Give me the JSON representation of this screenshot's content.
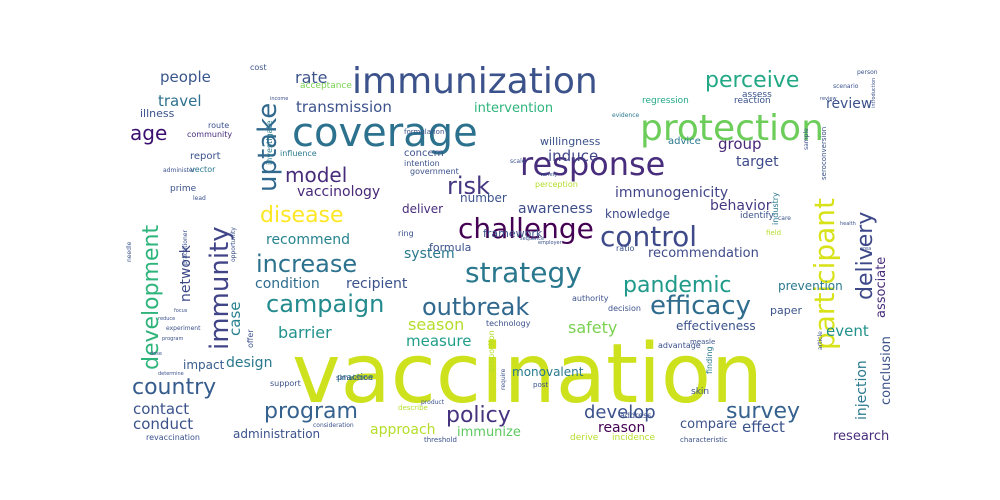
{
  "wordcloud": {
    "words": [
      {
        "text": "vaccination",
        "color": "#cde11d"
      },
      {
        "text": "coverage",
        "color": "#2c728e"
      },
      {
        "text": "immunization",
        "color": "#3b528b"
      },
      {
        "text": "protection",
        "color": "#6ccd5a"
      },
      {
        "text": "response",
        "color": "#472d7b"
      },
      {
        "text": "strategy",
        "color": "#2a788e"
      },
      {
        "text": "challenge",
        "color": "#440154"
      },
      {
        "text": "control",
        "color": "#3e4a89"
      },
      {
        "text": "efficacy",
        "color": "#2f6c8e"
      },
      {
        "text": "outbreak",
        "color": "#31688e"
      },
      {
        "text": "campaign",
        "color": "#238a8d"
      },
      {
        "text": "immunity",
        "color": "#414487"
      },
      {
        "text": "uptake",
        "color": "#31688e"
      },
      {
        "text": "participant",
        "color": "#d8e219"
      },
      {
        "text": "development",
        "color": "#2fb47c"
      },
      {
        "text": "delivery",
        "color": "#3e4989"
      },
      {
        "text": "increase",
        "color": "#2c728e"
      },
      {
        "text": "pandemic",
        "color": "#1f9a8a"
      },
      {
        "text": "policy",
        "color": "#46337e"
      },
      {
        "text": "program",
        "color": "#34618d"
      },
      {
        "text": "country",
        "color": "#365c8d"
      },
      {
        "text": "survey",
        "color": "#34618d"
      },
      {
        "text": "disease",
        "color": "#fde725"
      },
      {
        "text": "perceive",
        "color": "#22a884"
      },
      {
        "text": "risk",
        "color": "#453781"
      },
      {
        "text": "model",
        "color": "#472c7a"
      },
      {
        "text": "age",
        "color": "#3b0f70"
      },
      {
        "text": "people",
        "color": "#39568c"
      },
      {
        "text": "travel",
        "color": "#2d718e"
      },
      {
        "text": "rate",
        "color": "#3b528b"
      },
      {
        "text": "transmission",
        "color": "#3b528b"
      },
      {
        "text": "induce",
        "color": "#404688"
      },
      {
        "text": "group",
        "color": "#482878"
      },
      {
        "text": "target",
        "color": "#3e4a89"
      },
      {
        "text": "review",
        "color": "#3b528b"
      },
      {
        "text": "vaccinology",
        "color": "#482878"
      },
      {
        "text": "immunogenicity",
        "color": "#404588"
      },
      {
        "text": "awareness",
        "color": "#3d4e8a"
      },
      {
        "text": "behavior",
        "color": "#443a83"
      },
      {
        "text": "knowledge",
        "color": "#3e4989"
      },
      {
        "text": "recommend",
        "color": "#26828e"
      },
      {
        "text": "system",
        "color": "#2a788e"
      },
      {
        "text": "recommendation",
        "color": "#3e4a89"
      },
      {
        "text": "condition",
        "color": "#2f6c8e"
      },
      {
        "text": "recipient",
        "color": "#3b528b"
      },
      {
        "text": "barrier",
        "color": "#21918c"
      },
      {
        "text": "season",
        "color": "#b5de2b"
      },
      {
        "text": "safety",
        "color": "#7ad151"
      },
      {
        "text": "event",
        "color": "#21918c"
      },
      {
        "text": "associate",
        "color": "#472d7b"
      },
      {
        "text": "network",
        "color": "#3e4989"
      },
      {
        "text": "case",
        "color": "#27808e"
      },
      {
        "text": "measure",
        "color": "#1f9e89"
      },
      {
        "text": "design",
        "color": "#2a788e"
      },
      {
        "text": "impact",
        "color": "#365c8d"
      },
      {
        "text": "contact",
        "color": "#3b528b"
      },
      {
        "text": "conduct",
        "color": "#3b528b"
      },
      {
        "text": "administration",
        "color": "#3b528b"
      },
      {
        "text": "develop",
        "color": "#3b528b"
      },
      {
        "text": "approach",
        "color": "#b5de2b"
      },
      {
        "text": "immunize",
        "color": "#5ec962"
      },
      {
        "text": "reason",
        "color": "#440154"
      },
      {
        "text": "compare",
        "color": "#3b528b"
      },
      {
        "text": "effect",
        "color": "#3b528b"
      },
      {
        "text": "research",
        "color": "#472d7b"
      },
      {
        "text": "conclusion",
        "color": "#3b528b"
      },
      {
        "text": "injection",
        "color": "#2a788e"
      },
      {
        "text": "effectiveness",
        "color": "#3b528b"
      },
      {
        "text": "monovalent",
        "color": "#2a788e"
      },
      {
        "text": "intervention",
        "color": "#2fb47c"
      },
      {
        "text": "willingness",
        "color": "#3b528b"
      },
      {
        "text": "advice",
        "color": "#2a788e"
      },
      {
        "text": "number",
        "color": "#3b528b"
      },
      {
        "text": "deliver",
        "color": "#472d7b"
      },
      {
        "text": "framework",
        "color": "#3b528b"
      },
      {
        "text": "formula",
        "color": "#3b528b"
      },
      {
        "text": "prevention",
        "color": "#2a788e"
      },
      {
        "text": "illness",
        "color": "#3b528b"
      },
      {
        "text": "report",
        "color": "#3b528b"
      },
      {
        "text": "investigate",
        "color": "#2a788e"
      },
      {
        "text": "paper",
        "color": "#3b528b"
      },
      {
        "text": "ring",
        "color": "#3b528b"
      },
      {
        "text": "cost",
        "color": "#3b528b"
      },
      {
        "text": "influence",
        "color": "#2a788e"
      },
      {
        "text": "acceptance",
        "color": "#7ad151"
      },
      {
        "text": "regression",
        "color": "#22a884"
      },
      {
        "text": "reaction",
        "color": "#3b528b"
      },
      {
        "text": "community",
        "color": "#472d7b"
      },
      {
        "text": "route",
        "color": "#3b528b"
      },
      {
        "text": "vector",
        "color": "#2a788e"
      },
      {
        "text": "prime",
        "color": "#3b528b"
      },
      {
        "text": "government",
        "color": "#3b528b"
      },
      {
        "text": "concern",
        "color": "#3b528b"
      },
      {
        "text": "intention",
        "color": "#3b528b"
      },
      {
        "text": "perception",
        "color": "#b5de2b"
      },
      {
        "text": "evidence",
        "color": "#2a788e"
      },
      {
        "text": "identify",
        "color": "#3b528b"
      },
      {
        "text": "industry",
        "color": "#2a788e"
      },
      {
        "text": "ratio",
        "color": "#3b528b"
      },
      {
        "text": "practice",
        "color": "#2a788e"
      },
      {
        "text": "technology",
        "color": "#3b528b"
      },
      {
        "text": "authority",
        "color": "#3b528b"
      },
      {
        "text": "decision",
        "color": "#3b528b"
      },
      {
        "text": "advantage",
        "color": "#3b528b"
      },
      {
        "text": "assess",
        "color": "#3b528b"
      },
      {
        "text": "finding",
        "color": "#2a788e"
      },
      {
        "text": "skin",
        "color": "#3b528b"
      },
      {
        "text": "post",
        "color": "#3b528b"
      },
      {
        "text": "address",
        "color": "#3b528b"
      },
      {
        "text": "measle",
        "color": "#3b528b"
      },
      {
        "text": "derive",
        "color": "#b5de2b"
      },
      {
        "text": "incidence",
        "color": "#b5de2b"
      },
      {
        "text": "characteristic",
        "color": "#3b528b"
      },
      {
        "text": "describe",
        "color": "#b5de2b"
      },
      {
        "text": "support",
        "color": "#3b528b"
      },
      {
        "text": "offer",
        "color": "#3b528b"
      },
      {
        "text": "opportunity",
        "color": "#3b528b"
      },
      {
        "text": "revaccination",
        "color": "#3b528b"
      },
      {
        "text": "seroconversion",
        "color": "#3b528b"
      },
      {
        "text": "sample",
        "color": "#3b528b"
      },
      {
        "text": "introduction",
        "color": "#3b528b"
      },
      {
        "text": "employer",
        "color": "#3b528b"
      },
      {
        "text": "simulation",
        "color": "#3b528b"
      },
      {
        "text": "experiment",
        "color": "#3b528b"
      },
      {
        "text": "practitioner",
        "color": "#3b528b"
      },
      {
        "text": "formulation",
        "color": "#3b528b"
      },
      {
        "text": "scenario",
        "color": "#3b528b"
      },
      {
        "text": "person",
        "color": "#3b528b"
      },
      {
        "text": "care",
        "color": "#3b528b"
      },
      {
        "text": "field",
        "color": "#b5de2b"
      },
      {
        "text": "article",
        "color": "#3b528b"
      },
      {
        "text": "require",
        "color": "#3b528b"
      },
      {
        "text": "proportion",
        "color": "#b5de2b"
      },
      {
        "text": "administer",
        "color": "#3b528b"
      },
      {
        "text": "lead",
        "color": "#3b528b"
      },
      {
        "text": "scale",
        "color": "#3b528b"
      },
      {
        "text": "determine",
        "color": "#3b528b"
      },
      {
        "text": "needle",
        "color": "#3b528b"
      },
      {
        "text": "consideration",
        "color": "#3b528b"
      },
      {
        "text": "product",
        "color": "#3b528b"
      },
      {
        "text": "program",
        "color": "#3b528b"
      },
      {
        "text": "variety",
        "color": "#3b528b"
      },
      {
        "text": "income",
        "color": "#3b528b"
      },
      {
        "text": "threshold",
        "color": "#3b528b"
      },
      {
        "text": "sequence",
        "color": "#3b528b"
      },
      {
        "text": "health",
        "color": "#3b528b"
      },
      {
        "text": "reduce",
        "color": "#3b528b"
      },
      {
        "text": "dose",
        "color": "#3b528b"
      },
      {
        "text": "review",
        "color": "#3b528b"
      },
      {
        "text": "area",
        "color": "#3b528b"
      },
      {
        "text": "focus",
        "color": "#3b528b"
      }
    ]
  }
}
